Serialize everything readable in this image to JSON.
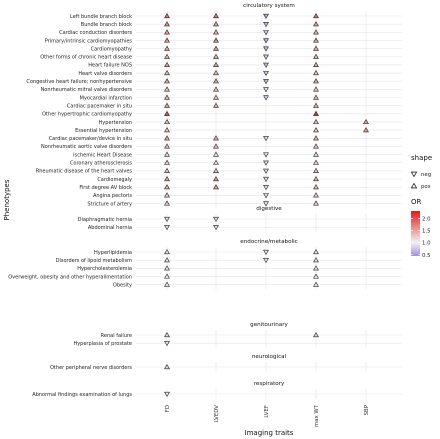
{
  "chart_data": {
    "type": "scatter",
    "xlabel": "Imaging traits",
    "ylabel": "Phenotypes",
    "x_categories": [
      "FD",
      "LVEDV",
      "LVEF",
      "max WT",
      "SBP"
    ],
    "legend_shape": {
      "title": "shape",
      "items": [
        {
          "label": "neg",
          "symbol": "triangle-down"
        },
        {
          "label": "pos",
          "symbol": "triangle-up"
        }
      ]
    },
    "legend_color": {
      "title": "OR",
      "ticks": [
        "2.0",
        "1.5",
        "1.0",
        "0.5"
      ],
      "tick_values": [
        2.0,
        1.5,
        1.0,
        0.5
      ],
      "range": [
        0.45,
        2.3
      ],
      "low_color": "#9f8ee0",
      "mid_color": "#f2f2f2",
      "high_color": "#e01c1c"
    },
    "panels": [
      {
        "title": "circulatory system",
        "rows": [
          {
            "label": "Left bundle branch block",
            "points": [
              {
                "x": "FD",
                "shape": "pos",
                "or": 1.8
              },
              {
                "x": "LVEDV",
                "shape": "pos",
                "or": 1.8
              },
              {
                "x": "LVEF",
                "shape": "neg",
                "or": 0.6
              },
              {
                "x": "max WT",
                "shape": "pos",
                "or": 1.8
              }
            ]
          },
          {
            "label": "Bundle branch block",
            "points": [
              {
                "x": "FD",
                "shape": "pos",
                "or": 1.6
              },
              {
                "x": "LVEDV",
                "shape": "pos",
                "or": 1.5
              },
              {
                "x": "LVEF",
                "shape": "neg",
                "or": 0.7
              },
              {
                "x": "max WT",
                "shape": "pos",
                "or": 1.5
              }
            ]
          },
          {
            "label": "Cardiac conduction disorders",
            "points": [
              {
                "x": "FD",
                "shape": "pos",
                "or": 1.5
              },
              {
                "x": "LVEDV",
                "shape": "pos",
                "or": 1.4
              },
              {
                "x": "LVEF",
                "shape": "neg",
                "or": 0.8
              },
              {
                "x": "max WT",
                "shape": "pos",
                "or": 1.4
              }
            ]
          },
          {
            "label": "Primary/intrinsic cardiomyopathies",
            "points": [
              {
                "x": "FD",
                "shape": "pos",
                "or": 1.6
              },
              {
                "x": "LVEDV",
                "shape": "pos",
                "or": 1.7
              },
              {
                "x": "LVEF",
                "shape": "neg",
                "or": 0.6
              },
              {
                "x": "max WT",
                "shape": "pos",
                "or": 1.6
              }
            ]
          },
          {
            "label": "Cardiomyopathy",
            "points": [
              {
                "x": "FD",
                "shape": "pos",
                "or": 1.5
              },
              {
                "x": "LVEDV",
                "shape": "pos",
                "or": 1.6
              },
              {
                "x": "LVEF",
                "shape": "neg",
                "or": 0.7
              },
              {
                "x": "max WT",
                "shape": "pos",
                "or": 1.5
              }
            ]
          },
          {
            "label": "Other forms of chronic heart disease",
            "points": [
              {
                "x": "FD",
                "shape": "pos",
                "or": 1.4
              },
              {
                "x": "LVEDV",
                "shape": "pos",
                "or": 1.4
              },
              {
                "x": "LVEF",
                "shape": "neg",
                "or": 0.8
              },
              {
                "x": "max WT",
                "shape": "pos",
                "or": 1.4
              }
            ]
          },
          {
            "label": "Heart failure NOS",
            "points": [
              {
                "x": "FD",
                "shape": "pos",
                "or": 1.5
              },
              {
                "x": "LVEDV",
                "shape": "pos",
                "or": 1.5
              },
              {
                "x": "LVEF",
                "shape": "neg",
                "or": 0.7
              },
              {
                "x": "max WT",
                "shape": "pos",
                "or": 1.5
              }
            ]
          },
          {
            "label": "Heart valve disorders",
            "points": [
              {
                "x": "FD",
                "shape": "pos",
                "or": 1.3
              },
              {
                "x": "LVEDV",
                "shape": "pos",
                "or": 1.3
              },
              {
                "x": "LVEF",
                "shape": "neg",
                "or": 0.8
              },
              {
                "x": "max WT",
                "shape": "pos",
                "or": 1.3
              }
            ]
          },
          {
            "label": "Congestive heart failure; nonhypertensive",
            "points": [
              {
                "x": "FD",
                "shape": "pos",
                "or": 1.5
              },
              {
                "x": "LVEDV",
                "shape": "pos",
                "or": 1.5
              },
              {
                "x": "LVEF",
                "shape": "neg",
                "or": 0.7
              },
              {
                "x": "max WT",
                "shape": "pos",
                "or": 1.5
              }
            ]
          },
          {
            "label": "Nonrheumatic mitral valve disorders",
            "points": [
              {
                "x": "FD",
                "shape": "pos",
                "or": 1.3
              },
              {
                "x": "LVEDV",
                "shape": "pos",
                "or": 1.3
              },
              {
                "x": "LVEF",
                "shape": "neg",
                "or": 0.9
              },
              {
                "x": "max WT",
                "shape": "pos",
                "or": 1.3
              }
            ]
          },
          {
            "label": "Myocardial infarction",
            "points": [
              {
                "x": "FD",
                "shape": "pos",
                "or": 1.4
              },
              {
                "x": "LVEDV",
                "shape": "pos",
                "or": 1.3
              },
              {
                "x": "LVEF",
                "shape": "neg",
                "or": 0.8
              },
              {
                "x": "max WT",
                "shape": "pos",
                "or": 1.4
              }
            ]
          },
          {
            "label": "Cardiac pacemaker in situ",
            "points": [
              {
                "x": "FD",
                "shape": "pos",
                "or": 1.5
              },
              {
                "x": "LVEDV",
                "shape": "pos",
                "or": 1.4
              },
              {
                "x": "max WT",
                "shape": "pos",
                "or": 1.4
              }
            ]
          },
          {
            "label": "Other hypertrophic cardiomyopathy",
            "points": [
              {
                "x": "FD",
                "shape": "pos",
                "or": 2.0
              },
              {
                "x": "max WT",
                "shape": "pos",
                "or": 2.2
              }
            ]
          },
          {
            "label": "Hypertension",
            "points": [
              {
                "x": "FD",
                "shape": "pos",
                "or": 1.3
              },
              {
                "x": "max WT",
                "shape": "pos",
                "or": 1.3
              },
              {
                "x": "SBP",
                "shape": "pos",
                "or": 1.5
              }
            ]
          },
          {
            "label": "Essential hypertension",
            "points": [
              {
                "x": "FD",
                "shape": "pos",
                "or": 1.3
              },
              {
                "x": "max WT",
                "shape": "pos",
                "or": 1.3
              },
              {
                "x": "SBP",
                "shape": "pos",
                "or": 1.5
              }
            ]
          },
          {
            "label": "Cardiac pacemaker/device in situ",
            "points": [
              {
                "x": "FD",
                "shape": "pos",
                "or": 1.5
              },
              {
                "x": "LVEDV",
                "shape": "pos",
                "or": 1.4
              },
              {
                "x": "LVEF",
                "shape": "neg",
                "or": 0.9
              },
              {
                "x": "max WT",
                "shape": "pos",
                "or": 1.4
              }
            ]
          },
          {
            "label": "Nonrheumatic aortic valve disorders",
            "points": [
              {
                "x": "FD",
                "shape": "pos",
                "or": 1.3
              },
              {
                "x": "LVEDV",
                "shape": "pos",
                "or": 1.3
              },
              {
                "x": "max WT",
                "shape": "pos",
                "or": 1.3
              }
            ]
          },
          {
            "label": "Ischemic Heart Disease",
            "points": [
              {
                "x": "FD",
                "shape": "pos",
                "or": 1.2
              },
              {
                "x": "LVEDV",
                "shape": "pos",
                "or": 1.1
              },
              {
                "x": "LVEF",
                "shape": "neg",
                "or": 0.9
              },
              {
                "x": "max WT",
                "shape": "pos",
                "or": 1.2
              }
            ]
          },
          {
            "label": "Coronary atherosclerosis",
            "points": [
              {
                "x": "FD",
                "shape": "pos",
                "or": 1.2
              },
              {
                "x": "LVEDV",
                "shape": "pos",
                "or": 1.1
              },
              {
                "x": "LVEF",
                "shape": "neg",
                "or": 0.9
              },
              {
                "x": "max WT",
                "shape": "pos",
                "or": 1.2
              }
            ]
          },
          {
            "label": "Rheumatic disease of the heart valves",
            "points": [
              {
                "x": "FD",
                "shape": "pos",
                "or": 1.3
              },
              {
                "x": "LVEDV",
                "shape": "pos",
                "or": 1.3
              },
              {
                "x": "LVEF",
                "shape": "neg",
                "or": 0.9
              },
              {
                "x": "max WT",
                "shape": "pos",
                "or": 1.3
              }
            ]
          },
          {
            "label": "Cardiomegaly",
            "points": [
              {
                "x": "FD",
                "shape": "pos",
                "or": 1.5
              },
              {
                "x": "LVEDV",
                "shape": "pos",
                "or": 1.6
              },
              {
                "x": "LVEF",
                "shape": "neg",
                "or": 0.9
              },
              {
                "x": "max WT",
                "shape": "pos",
                "or": 1.4
              }
            ]
          },
          {
            "label": "First degree AV block",
            "points": [
              {
                "x": "FD",
                "shape": "pos",
                "or": 1.4
              },
              {
                "x": "LVEDV",
                "shape": "pos",
                "or": 1.5
              },
              {
                "x": "LVEF",
                "shape": "neg",
                "or": 0.9
              },
              {
                "x": "max WT",
                "shape": "pos",
                "or": 1.3
              }
            ]
          },
          {
            "label": "Angina pectoris",
            "points": [
              {
                "x": "FD",
                "shape": "pos",
                "or": 1.2
              },
              {
                "x": "LVEF",
                "shape": "neg",
                "or": 0.9
              },
              {
                "x": "max WT",
                "shape": "pos",
                "or": 1.2
              }
            ]
          },
          {
            "label": "Stricture of artery",
            "points": [
              {
                "x": "FD",
                "shape": "pos",
                "or": 1.3
              },
              {
                "x": "LVEF",
                "shape": "neg",
                "or": 0.9
              },
              {
                "x": "max WT",
                "shape": "pos",
                "or": 1.3
              }
            ]
          }
        ]
      },
      {
        "title": "digestive",
        "rows": [
          {
            "label": "Diaphragmatic hernia",
            "points": [
              {
                "x": "FD",
                "shape": "neg",
                "or": 0.9
              },
              {
                "x": "LVEDV",
                "shape": "neg",
                "or": 0.9
              }
            ]
          },
          {
            "label": "Abdominal hernia",
            "points": [
              {
                "x": "FD",
                "shape": "neg",
                "or": 0.9
              },
              {
                "x": "LVEDV",
                "shape": "neg",
                "or": 0.9
              }
            ]
          }
        ]
      },
      {
        "title": "endocrine/metabolic",
        "rows": [
          {
            "label": "Hyperlipidemia",
            "points": [
              {
                "x": "FD",
                "shape": "pos",
                "or": 1.1
              },
              {
                "x": "LVEF",
                "shape": "neg",
                "or": 0.95
              },
              {
                "x": "max WT",
                "shape": "pos",
                "or": 1.1
              }
            ]
          },
          {
            "label": "Disorders of lipoid metabolism",
            "points": [
              {
                "x": "FD",
                "shape": "pos",
                "or": 1.1
              },
              {
                "x": "LVEF",
                "shape": "neg",
                "or": 0.95
              },
              {
                "x": "max WT",
                "shape": "pos",
                "or": 1.1
              }
            ]
          },
          {
            "label": "Hypercholesterolemia",
            "points": [
              {
                "x": "FD",
                "shape": "pos",
                "or": 1.1
              },
              {
                "x": "max WT",
                "shape": "pos",
                "or": 1.1
              }
            ]
          },
          {
            "label": "Overweight, obesity and other hyperalimentation",
            "points": [
              {
                "x": "FD",
                "shape": "pos",
                "or": 1.1
              },
              {
                "x": "max WT",
                "shape": "pos",
                "or": 1.1
              }
            ]
          },
          {
            "label": "Obesity",
            "points": [
              {
                "x": "FD",
                "shape": "pos",
                "or": 1.1
              },
              {
                "x": "max WT",
                "shape": "pos",
                "or": 1.1
              }
            ]
          }
        ]
      },
      {
        "title": "genitourinary",
        "rows": [
          {
            "label": "Renal failure",
            "points": [
              {
                "x": "FD",
                "shape": "pos",
                "or": 1.2
              },
              {
                "x": "max WT",
                "shape": "pos",
                "or": 1.2
              }
            ]
          },
          {
            "label": "Hyperplasia of prostate",
            "points": [
              {
                "x": "FD",
                "shape": "neg",
                "or": 0.95
              }
            ]
          }
        ]
      },
      {
        "title": "neurological",
        "rows": [
          {
            "label": "Other peripheral nerve disorders",
            "points": [
              {
                "x": "FD",
                "shape": "pos",
                "or": 1.2
              }
            ]
          }
        ]
      },
      {
        "title": "respiratory",
        "rows": [
          {
            "label": "Abnormal findings examination of lungs",
            "points": [
              {
                "x": "FD",
                "shape": "neg",
                "or": 0.95
              }
            ]
          }
        ]
      }
    ]
  }
}
